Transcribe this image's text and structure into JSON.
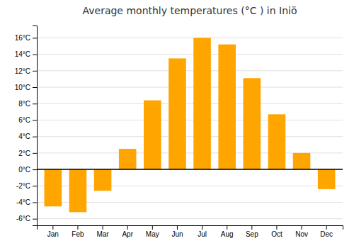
{
  "chart_data": {
    "type": "bar",
    "title": "Average monthly temperatures (°C ) in Iniö",
    "categories": [
      "Jan",
      "Feb",
      "Mar",
      "Apr",
      "May",
      "Jun",
      "Jul",
      "Aug",
      "Sep",
      "Oct",
      "Nov",
      "Dec"
    ],
    "values": [
      -4.5,
      -5.2,
      -2.6,
      2.5,
      8.4,
      13.5,
      16.0,
      15.2,
      11.1,
      6.7,
      2.0,
      -2.4
    ],
    "color": "#FFA500",
    "ylim": [
      -6.8,
      17.5
    ],
    "yticks": [
      {
        "value": -6,
        "label": "-6°C"
      },
      {
        "value": -4,
        "label": "-4°C"
      },
      {
        "value": -2,
        "label": "-2°C"
      },
      {
        "value": 0,
        "label": "0°C"
      },
      {
        "value": 2,
        "label": "2°C"
      },
      {
        "value": 4,
        "label": "4°C"
      },
      {
        "value": 6,
        "label": "6°C"
      },
      {
        "value": 8,
        "label": "8°C"
      },
      {
        "value": 10,
        "label": "10°C"
      },
      {
        "value": 12,
        "label": "12°C"
      },
      {
        "value": 14,
        "label": "14°C"
      },
      {
        "value": 16,
        "label": "16°C"
      }
    ],
    "grid": true
  }
}
